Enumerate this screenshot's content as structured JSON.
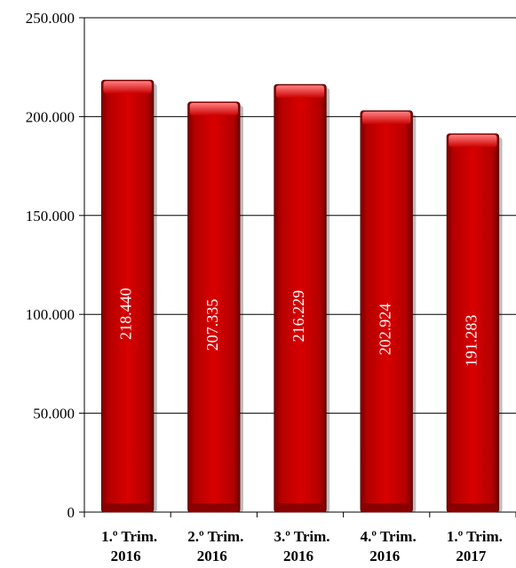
{
  "chart_data": {
    "type": "bar",
    "categories": [
      [
        "1.º Trim.",
        "2016"
      ],
      [
        "2.º Trim.",
        "2016"
      ],
      [
        "3.º Trim.",
        "2016"
      ],
      [
        "4.º Trim.",
        "2016"
      ],
      [
        "1.º Trim.",
        "2017"
      ]
    ],
    "values": [
      218440,
      207335,
      216229,
      202924,
      191283
    ],
    "data_labels": [
      "218.440",
      "207.335",
      "216.229",
      "202.924",
      "191.283"
    ],
    "y_ticks": [
      0,
      50000,
      100000,
      150000,
      200000,
      250000
    ],
    "y_tick_labels": [
      "0",
      "50.000",
      "100.000",
      "150.000",
      "200.000",
      "250.000"
    ],
    "ylim": [
      0,
      250000
    ],
    "title": "",
    "xlabel": "",
    "ylabel": "",
    "grid": true,
    "bar_color": "#cc0000",
    "bar_color_dark": "#7a0000",
    "label_color": "#ffffff"
  }
}
